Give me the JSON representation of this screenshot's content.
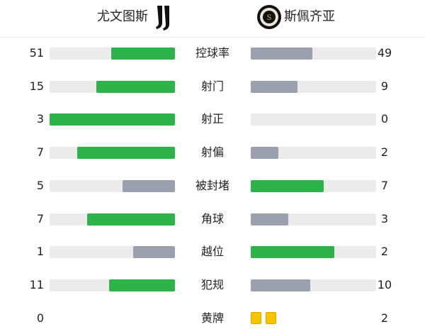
{
  "home": {
    "name": "尤文图斯",
    "logo": "juventus-logo"
  },
  "away": {
    "name": "斯佩齐亚",
    "logo": "spezia-logo"
  },
  "colors": {
    "leader": "#2db34a",
    "trailer": "#9aa0ae",
    "track": "#ebebeb",
    "card": "#f7c400"
  },
  "stats": [
    {
      "label": "控球率",
      "home": "51",
      "away": "49"
    },
    {
      "label": "射门",
      "home": "15",
      "away": "9"
    },
    {
      "label": "射正",
      "home": "3",
      "away": "0"
    },
    {
      "label": "射偏",
      "home": "7",
      "away": "2"
    },
    {
      "label": "被封堵",
      "home": "5",
      "away": "7"
    },
    {
      "label": "角球",
      "home": "7",
      "away": "3"
    },
    {
      "label": "越位",
      "home": "1",
      "away": "2"
    },
    {
      "label": "犯规",
      "home": "11",
      "away": "10"
    },
    {
      "label": "黄牌",
      "home": "0",
      "away": "2",
      "type": "cards"
    }
  ]
}
